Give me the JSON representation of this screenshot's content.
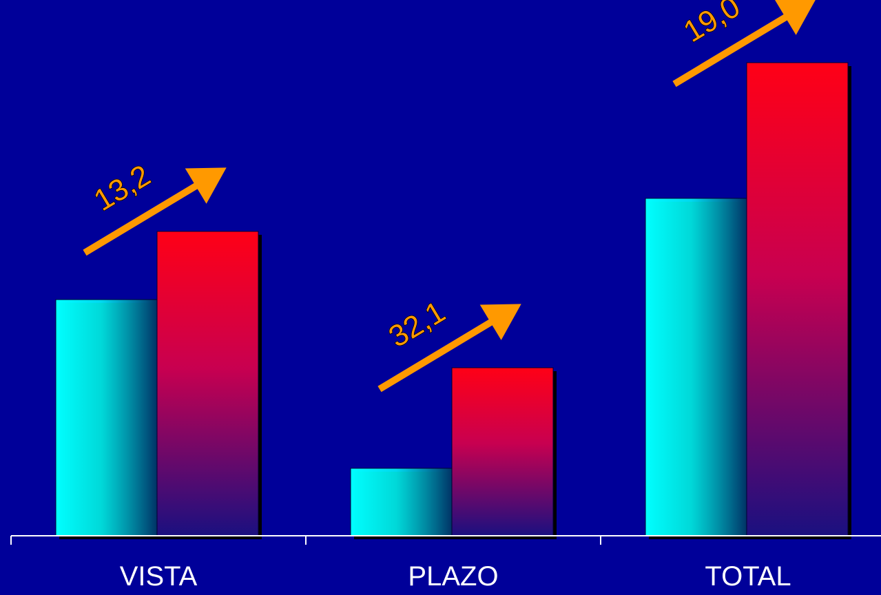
{
  "chart_data": {
    "type": "bar",
    "title": "",
    "xlabel": "",
    "ylabel": "",
    "categories": [
      "VISTA",
      "PLAZO",
      "TOTAL"
    ],
    "series": [
      {
        "values": [
          343,
          98,
          490
        ]
      },
      {
        "values": [
          442,
          244,
          687
        ]
      }
    ],
    "ylim": [
      0,
      700
    ],
    "grid": false,
    "legend": "none",
    "annotations": [
      {
        "category": "VISTA",
        "label": "13,2"
      },
      {
        "category": "PLAZO",
        "label": "32,1"
      },
      {
        "category": "TOTAL",
        "label": "19,0"
      }
    ],
    "colors": {
      "background": "#000099",
      "series1_light": "#00ffff",
      "series1_dark": "#003366",
      "series2_top": "#ff0016",
      "series2_bottom": "#1a1080",
      "arrow": "#ff9900",
      "axis": "#ffffff"
    }
  }
}
